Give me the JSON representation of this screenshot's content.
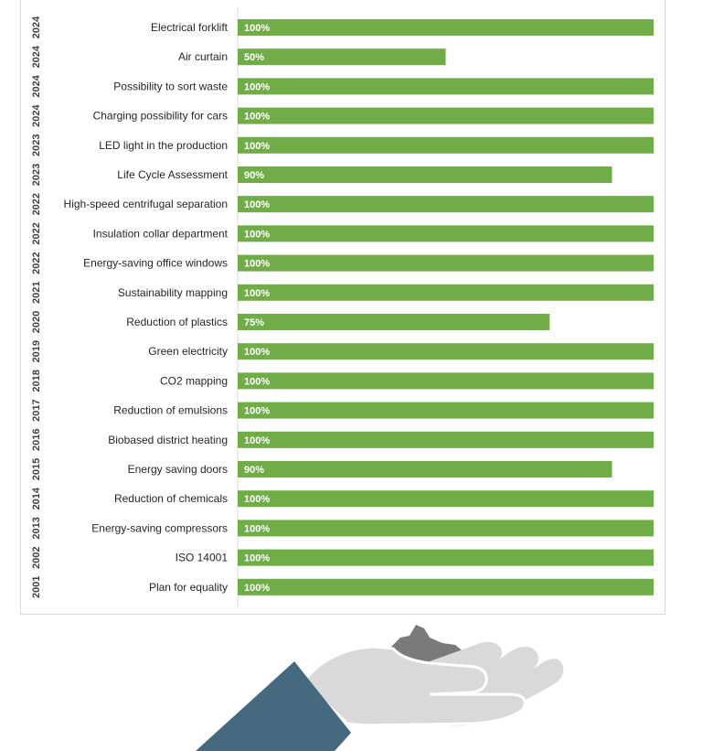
{
  "chart_data": {
    "type": "bar",
    "orientation": "horizontal",
    "xlim": [
      0,
      100
    ],
    "grid": false,
    "legend": "none",
    "colors": {
      "bar": "#70ad47",
      "value_label": "#ffffff"
    },
    "rows": [
      {
        "year": "2024",
        "label": "Electrical forklift",
        "value": 100,
        "value_label": "100%"
      },
      {
        "year": "2024",
        "label": "Air curtain",
        "value": 50,
        "value_label": "50%"
      },
      {
        "year": "2024",
        "label": "Possibility to sort waste",
        "value": 100,
        "value_label": "100%"
      },
      {
        "year": "2024",
        "label": "Charging possibility for cars",
        "value": 100,
        "value_label": "100%"
      },
      {
        "year": "2023",
        "label": "LED light in the production",
        "value": 100,
        "value_label": "100%"
      },
      {
        "year": "2023",
        "label": "Life Cycle Assessment",
        "value": 90,
        "value_label": "90%"
      },
      {
        "year": "2022",
        "label": "High-speed centrifugal separation",
        "value": 100,
        "value_label": "100%"
      },
      {
        "year": "2022",
        "label": "Insulation collar department",
        "value": 100,
        "value_label": "100%"
      },
      {
        "year": "2022",
        "label": "Energy-saving office windows",
        "value": 100,
        "value_label": "100%"
      },
      {
        "year": "2021",
        "label": "Sustainability mapping",
        "value": 100,
        "value_label": "100%"
      },
      {
        "year": "2020",
        "label": "Reduction of plastics",
        "value": 75,
        "value_label": "75%"
      },
      {
        "year": "2019",
        "label": "Green electricity",
        "value": 100,
        "value_label": "100%"
      },
      {
        "year": "2018",
        "label": "CO2 mapping",
        "value": 100,
        "value_label": "100%"
      },
      {
        "year": "2017",
        "label": "Reduction of emulsions",
        "value": 100,
        "value_label": "100%"
      },
      {
        "year": "2016",
        "label": "Biobased district heating",
        "value": 100,
        "value_label": "100%"
      },
      {
        "year": "2015",
        "label": "Energy saving doors",
        "value": 90,
        "value_label": "90%"
      },
      {
        "year": "2014",
        "label": "Reduction of chemicals",
        "value": 100,
        "value_label": "100%"
      },
      {
        "year": "2013",
        "label": "Energy-saving compressors",
        "value": 100,
        "value_label": "100%"
      },
      {
        "year": "2002",
        "label": "ISO 14001",
        "value": 100,
        "value_label": "100%"
      },
      {
        "year": "2001",
        "label": "Plan for equality",
        "value": 100,
        "value_label": "100%"
      }
    ]
  },
  "illustration": {
    "icon": "hand-holding-soil-icon",
    "colors": {
      "hand": "#d9d9d9",
      "sleeve": "#456a80",
      "soil": "#7a7a7a"
    }
  }
}
